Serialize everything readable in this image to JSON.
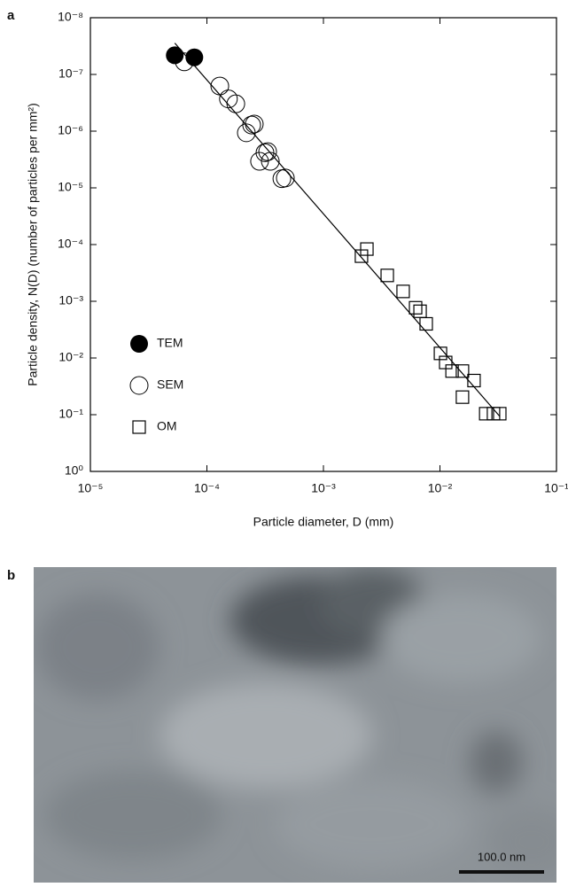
{
  "chart_data": {
    "type": "scatter",
    "panel_label": "a",
    "xlabel": "Particle diameter, D (mm)",
    "ylabel": "Particle density, N(D) (number of particles per mm²)",
    "xscale": "log",
    "yscale": "log",
    "xlim": [
      1e-05,
      0.1
    ],
    "ylim": [
      1,
      1e-08
    ],
    "xticks": [
      {
        "value": 1e-05,
        "label": "10⁻⁵"
      },
      {
        "value": 0.0001,
        "label": "10⁻⁴"
      },
      {
        "value": 0.001,
        "label": "10⁻³"
      },
      {
        "value": 0.01,
        "label": "10⁻²"
      },
      {
        "value": 0.1,
        "label": "10⁻¹"
      }
    ],
    "yticks": [
      {
        "value": 1e-08,
        "label": "10⁻⁸"
      },
      {
        "value": 1e-07,
        "label": "10⁻⁷"
      },
      {
        "value": 1e-06,
        "label": "10⁻⁶"
      },
      {
        "value": 1e-05,
        "label": "10⁻⁵"
      },
      {
        "value": 0.0001,
        "label": "10⁻⁴"
      },
      {
        "value": 0.001,
        "label": "10⁻³"
      },
      {
        "value": 0.01,
        "label": "10⁻²"
      },
      {
        "value": 0.1,
        "label": "10⁻¹"
      },
      {
        "value": 1,
        "label": "10⁰"
      }
    ],
    "legend": "lower left",
    "series": [
      {
        "name": "TEM",
        "marker": "filled-circle",
        "color": "#000000",
        "x": [
          5.3e-05,
          7.8e-05
        ],
        "values": [
          4.6e-08,
          5e-08
        ]
      },
      {
        "name": "SEM",
        "marker": "open-circle",
        "color": "#000000",
        "x": [
          6.4e-05,
          0.000129,
          0.000153,
          0.000177,
          0.000218,
          0.000242,
          0.000255,
          0.000283,
          0.000315,
          0.000332,
          0.00035,
          0.00044,
          0.000471
        ],
        "values": [
          6e-08,
          1.6e-07,
          2.7e-07,
          3.3e-07,
          1.07e-06,
          7.8e-07,
          7.5e-07,
          3.4e-06,
          2.4e-06,
          2.3e-06,
          3.4e-06,
          6.9e-06,
          6.7e-06
        ]
      },
      {
        "name": "OM",
        "marker": "open-square",
        "color": "#000000",
        "x": [
          0.00212,
          0.00236,
          0.00353,
          0.00483,
          0.00618,
          0.00675,
          0.00762,
          0.0101,
          0.0112,
          0.0127,
          0.0156,
          0.0196,
          0.0156,
          0.0247,
          0.0288,
          0.0326
        ],
        "values": [
          0.00016,
          0.00012,
          0.00035,
          0.00067,
          0.0013,
          0.0015,
          0.0025,
          0.0083,
          0.012,
          0.017,
          0.017,
          0.025,
          0.049,
          0.096,
          0.096,
          0.096
        ]
      },
      {
        "marker": "line",
        "color": "#000000",
        "x": [
          5.3e-05,
          0.0326
        ],
        "values": [
          2.8e-08,
          0.107
        ]
      }
    ]
  },
  "image_panel": {
    "panel_label": "b",
    "scale_bar": "100.0 nm"
  }
}
